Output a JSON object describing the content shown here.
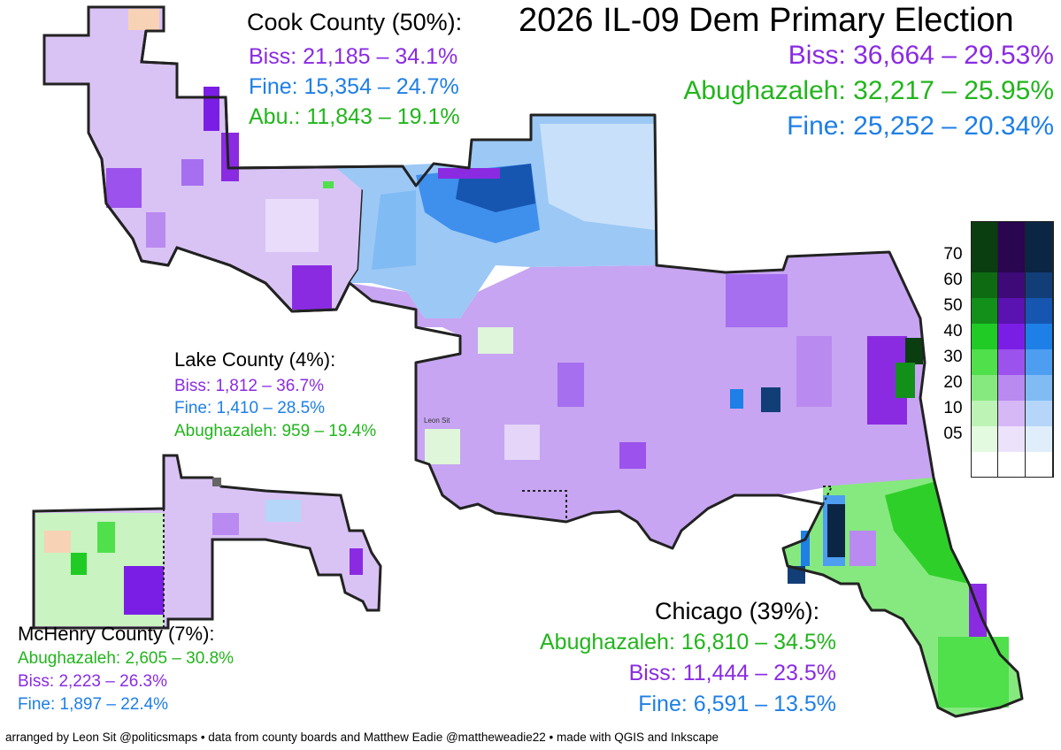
{
  "title": "2026 IL-09 Dem Primary Election",
  "colors": {
    "biss": "#8a2be2",
    "fine": "#1e7fe6",
    "abu": "#22b51c",
    "border": "#222222"
  },
  "overall": {
    "biss": "Biss: 36,664 – 29.53%",
    "abu": "Abughazaleh: 32,217 – 25.95%",
    "fine": "Fine: 25,252 – 20.34%"
  },
  "cook": {
    "header": "Cook County (50%):",
    "biss": "Biss: 21,185 – 34.1%",
    "fine": "Fine: 15,354 – 24.7%",
    "abu": "Abu.: 11,843 – 19.1%"
  },
  "lake": {
    "header": "Lake County (4%):",
    "biss": "Biss: 1,812 – 36.7%",
    "fine": "Fine: 1,410 – 28.5%",
    "abu": "Abughazaleh: 959 – 19.4%"
  },
  "mchenry": {
    "header": "McHenry County (7%):",
    "abu": "Abughazaleh: 2,605 – 30.8%",
    "biss": "Biss: 2,223 – 26.3%",
    "fine": "Fine: 1,897 – 22.4%"
  },
  "chicago": {
    "header": "Chicago (39%):",
    "abu": "Abughazaleh: 16,810 – 34.5%",
    "biss": "Biss: 11,444 – 23.5%",
    "fine": "Fine: 6,591 – 13.5%"
  },
  "legend": {
    "labels": [
      "70",
      "60",
      "50",
      "40",
      "30",
      "20",
      "10",
      "05"
    ],
    "columns": [
      [
        "#0a3d0f",
        "#0e6b12",
        "#12901a",
        "#1fcb24",
        "#4fe04c",
        "#86e97f",
        "#bdf3b5",
        "#e4fae0"
      ],
      [
        "#2a0550",
        "#3e0a78",
        "#5a12b0",
        "#7a1ee6",
        "#9c52ec",
        "#b98af0",
        "#d6b8f6",
        "#ede2fb"
      ],
      [
        "#0b2545",
        "#123e78",
        "#1656b0",
        "#1e7fe6",
        "#4d9ef0",
        "#80bbf4",
        "#b5d6f9",
        "#e0eefc"
      ]
    ]
  },
  "signature": "Leon Sit",
  "credit": "arranged by Leon Sit @politicsmaps • data from county boards and Matthew Eadie @mattheweadie22 • made with QGIS and Inkscape"
}
